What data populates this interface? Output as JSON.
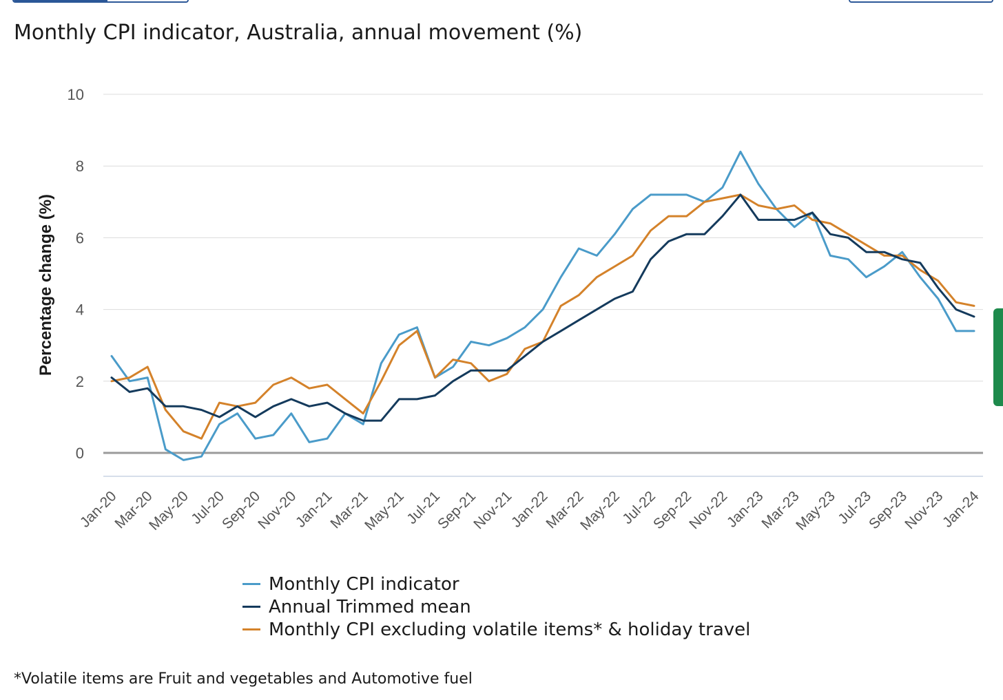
{
  "colors": {
    "series_1": "#4a9bc9",
    "series_2": "#143a5c",
    "series_3": "#d4822a",
    "gridline": "#dcdcdc",
    "zero_line": "#9a9a9a",
    "axis_line": "#c9d3e3",
    "tick_text": "#555555",
    "top_tab": "#2b5797",
    "side_tab": "#1e8a4c"
  },
  "chart_data": {
    "type": "line",
    "title": "Monthly CPI indicator, Australia, annual movement (%)",
    "xlabel": "",
    "ylabel": "Percentage change (%)",
    "ylim": [
      -0.65,
      10
    ],
    "yticks": [
      0,
      2,
      4,
      6,
      8,
      10
    ],
    "grid": true,
    "legend_position": "bottom",
    "categories": [
      "Jan-20",
      "Feb-20",
      "Mar-20",
      "Apr-20",
      "May-20",
      "Jun-20",
      "Jul-20",
      "Aug-20",
      "Sep-20",
      "Oct-20",
      "Nov-20",
      "Dec-20",
      "Jan-21",
      "Feb-21",
      "Mar-21",
      "Apr-21",
      "May-21",
      "Jun-21",
      "Jul-21",
      "Aug-21",
      "Sep-21",
      "Oct-21",
      "Nov-21",
      "Dec-21",
      "Jan-22",
      "Feb-22",
      "Mar-22",
      "Apr-22",
      "May-22",
      "Jun-22",
      "Jul-22",
      "Aug-22",
      "Sep-22",
      "Oct-22",
      "Nov-22",
      "Dec-22",
      "Jan-23",
      "Feb-23",
      "Mar-23",
      "Apr-23",
      "May-23",
      "Jun-23",
      "Jul-23",
      "Aug-23",
      "Sep-23",
      "Oct-23",
      "Nov-23",
      "Dec-23",
      "Jan-24"
    ],
    "tick_labels": [
      "Jan-20",
      "Mar-20",
      "May-20",
      "Jul-20",
      "Sep-20",
      "Nov-20",
      "Jan-21",
      "Mar-21",
      "May-21",
      "Jul-21",
      "Sep-21",
      "Nov-21",
      "Jan-22",
      "Mar-22",
      "May-22",
      "Jul-22",
      "Sep-22",
      "Nov-22",
      "Jan-23",
      "Mar-23",
      "May-23",
      "Jul-23",
      "Sep-23",
      "Nov-23",
      "Jan-24"
    ],
    "series": [
      {
        "name": "Monthly CPI indicator",
        "values": [
          2.7,
          2.0,
          2.1,
          0.1,
          -0.2,
          -0.1,
          0.8,
          1.1,
          0.4,
          0.5,
          1.1,
          0.3,
          0.4,
          1.1,
          0.8,
          2.5,
          3.3,
          3.5,
          2.1,
          2.4,
          3.1,
          3.0,
          3.2,
          3.5,
          4.0,
          4.9,
          5.7,
          5.5,
          6.1,
          6.8,
          7.2,
          7.2,
          7.2,
          7.0,
          7.4,
          8.4,
          7.5,
          6.8,
          6.3,
          6.7,
          5.5,
          5.4,
          4.9,
          5.2,
          5.6,
          4.9,
          4.3,
          3.4,
          3.4
        ]
      },
      {
        "name": "Annual Trimmed mean",
        "values": [
          2.1,
          1.7,
          1.8,
          1.3,
          1.3,
          1.2,
          1.0,
          1.3,
          1.0,
          1.3,
          1.5,
          1.3,
          1.4,
          1.1,
          0.9,
          0.9,
          1.5,
          1.5,
          1.6,
          2.0,
          2.3,
          2.3,
          2.3,
          2.7,
          3.1,
          3.4,
          3.7,
          4.0,
          4.3,
          4.5,
          5.4,
          5.9,
          6.1,
          6.1,
          6.6,
          7.2,
          6.5,
          6.5,
          6.5,
          6.7,
          6.1,
          6.0,
          5.6,
          5.6,
          5.4,
          5.3,
          4.6,
          4.0,
          3.8
        ]
      },
      {
        "name": "Monthly CPI excluding volatile items* & holiday travel",
        "values": [
          2.0,
          2.1,
          2.4,
          1.2,
          0.6,
          0.4,
          1.4,
          1.3,
          1.4,
          1.9,
          2.1,
          1.8,
          1.9,
          1.5,
          1.1,
          2.0,
          3.0,
          3.4,
          2.1,
          2.6,
          2.5,
          2.0,
          2.2,
          2.9,
          3.1,
          4.1,
          4.4,
          4.9,
          5.2,
          5.5,
          6.2,
          6.6,
          6.6,
          7.0,
          7.1,
          7.2,
          6.9,
          6.8,
          6.9,
          6.5,
          6.4,
          6.1,
          5.8,
          5.5,
          5.5,
          5.1,
          4.8,
          4.2,
          4.1
        ]
      }
    ],
    "footnote": "*Volatile items are Fruit and vegetables and Automotive fuel"
  }
}
